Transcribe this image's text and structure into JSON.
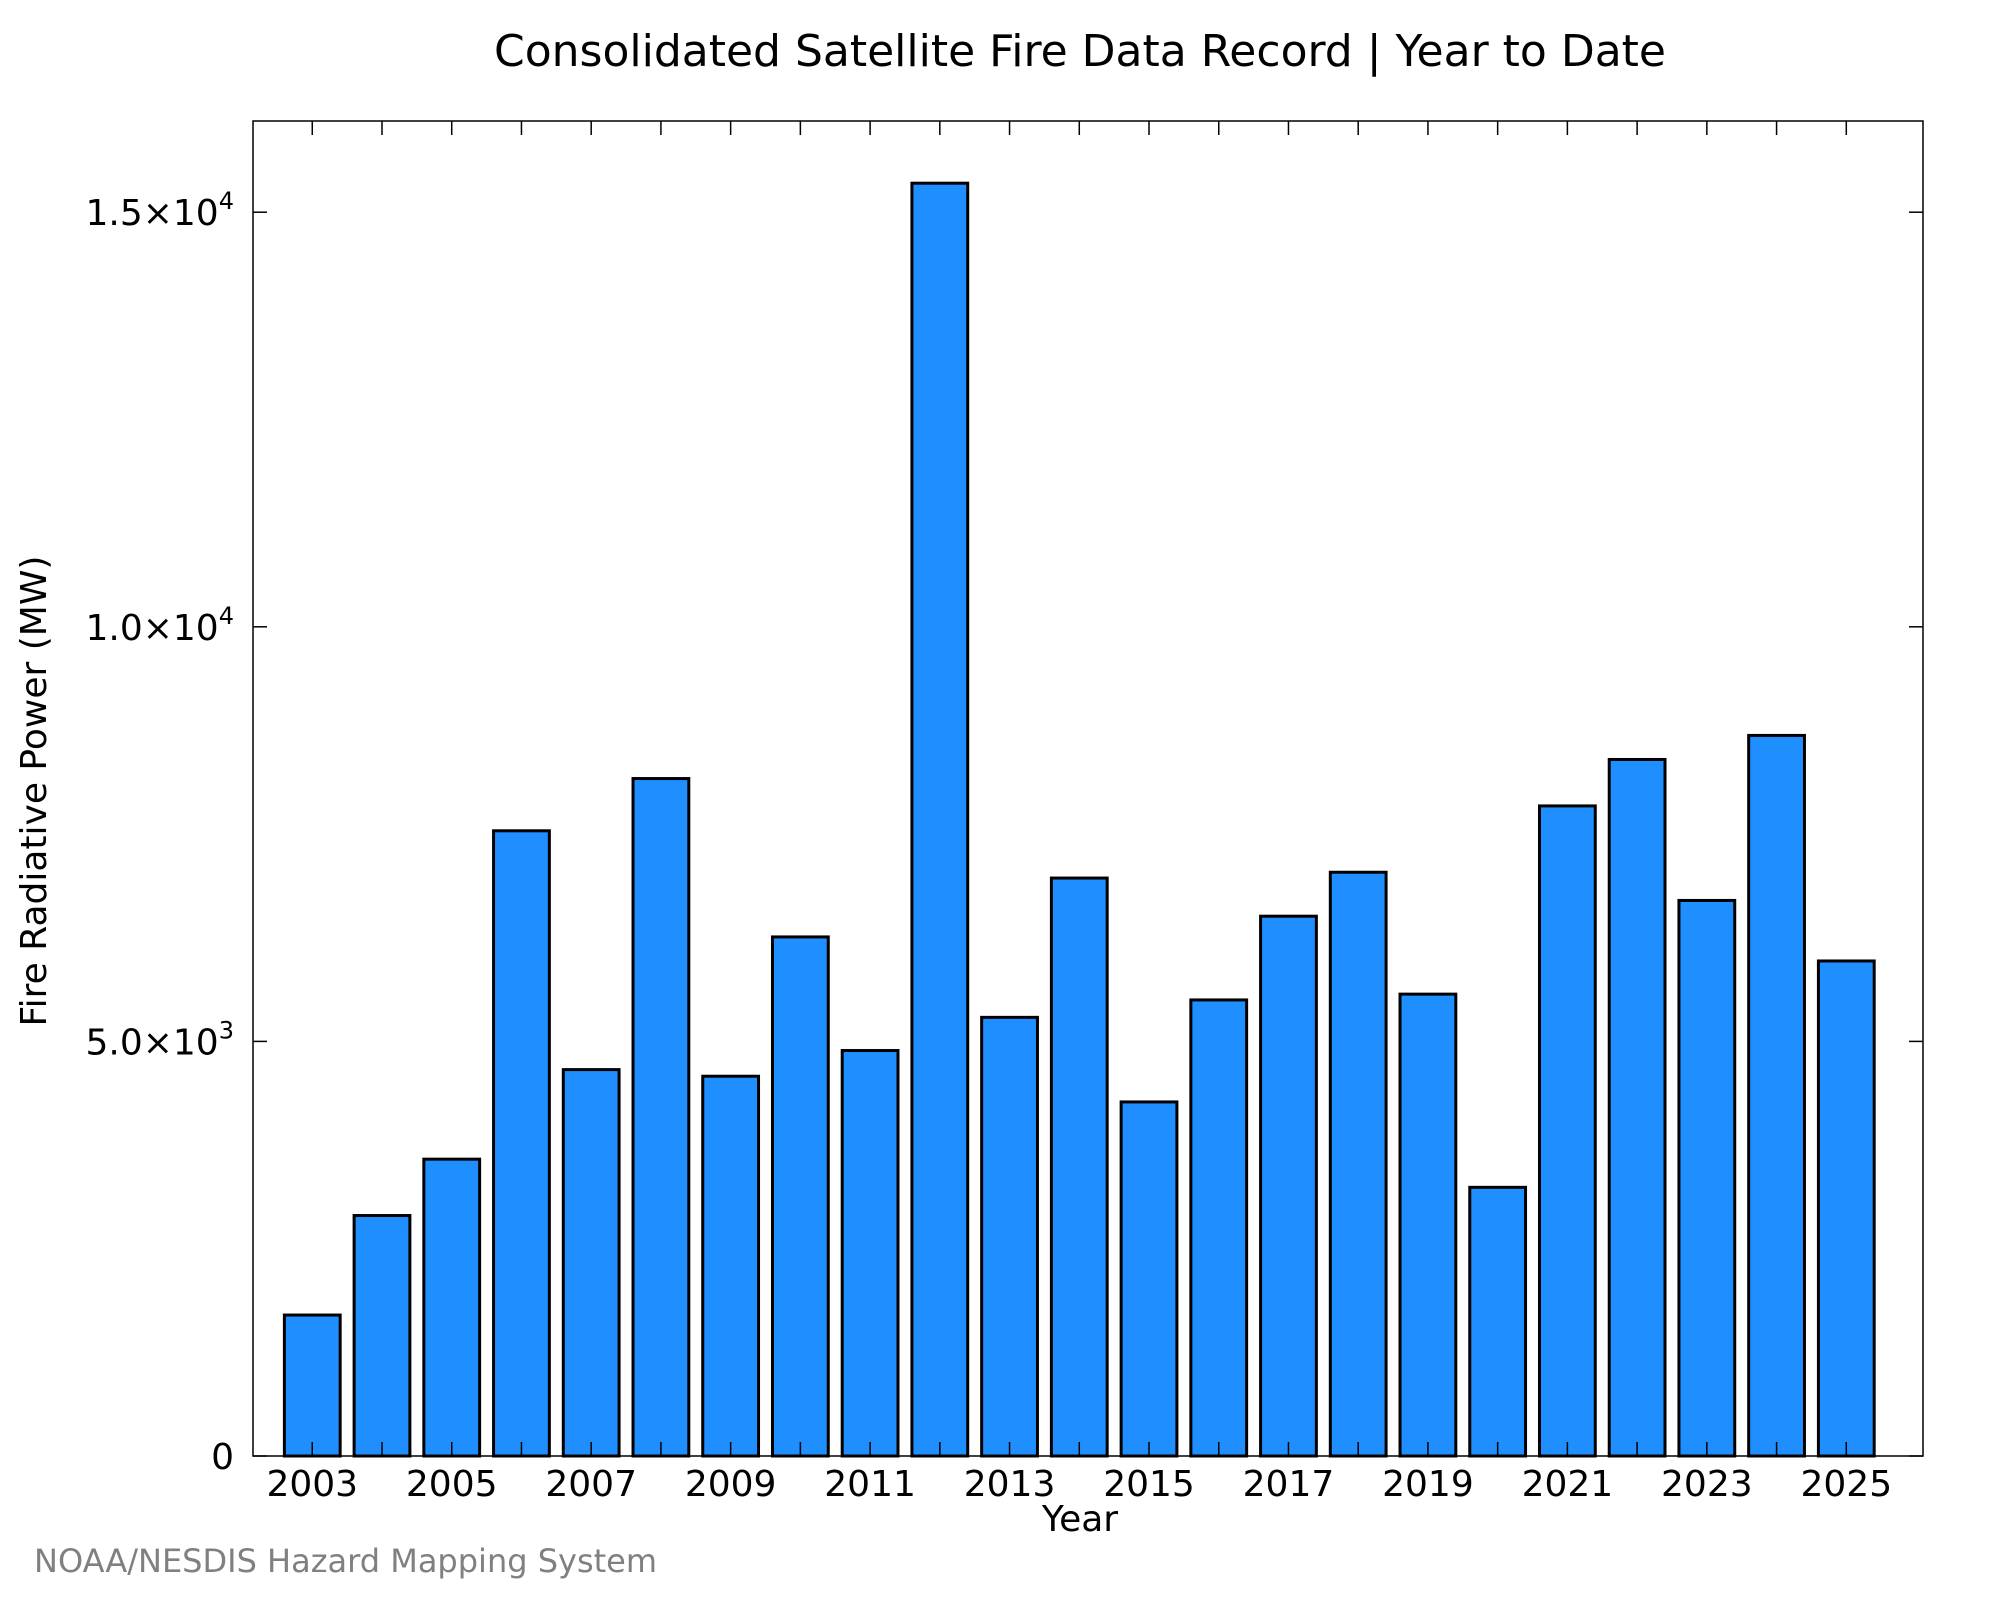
{
  "chart_data": {
    "type": "bar",
    "title": "Consolidated Satellite Fire Data Record | Year to Date",
    "xlabel": "Year",
    "ylabel": "Fire Radiative Power (MW)",
    "categories": [
      2003,
      2004,
      2005,
      2006,
      2007,
      2008,
      2009,
      2010,
      2011,
      2012,
      2013,
      2014,
      2015,
      2016,
      2017,
      2018,
      2019,
      2020,
      2021,
      2022,
      2023,
      2024,
      2025
    ],
    "values": [
      1700,
      2900,
      3580,
      7540,
      4660,
      8170,
      4580,
      6260,
      4890,
      15350,
      5290,
      6970,
      4270,
      5500,
      6510,
      7040,
      5570,
      3240,
      7840,
      8400,
      6700,
      8690,
      5970
    ],
    "x_tick_labels": [
      "2003",
      "2005",
      "2007",
      "2009",
      "2011",
      "2013",
      "2015",
      "2017",
      "2019",
      "2021",
      "2023",
      "2025"
    ],
    "y_ticks": [
      {
        "value": 0,
        "mantissa": "0",
        "exp": ""
      },
      {
        "value": 5000,
        "mantissa": "5.0×10",
        "exp": "3"
      },
      {
        "value": 10000,
        "mantissa": "1.0×10",
        "exp": "4"
      },
      {
        "value": 15000,
        "mantissa": "1.5×10",
        "exp": "4"
      }
    ],
    "ylim": [
      0,
      16100
    ],
    "xlim": [
      2002.15,
      2026.1
    ],
    "grid": false,
    "bar_color": "#1f8fff",
    "bar_edge_color": "#000000"
  },
  "credit": "NOAA/NESDIS Hazard Mapping System"
}
